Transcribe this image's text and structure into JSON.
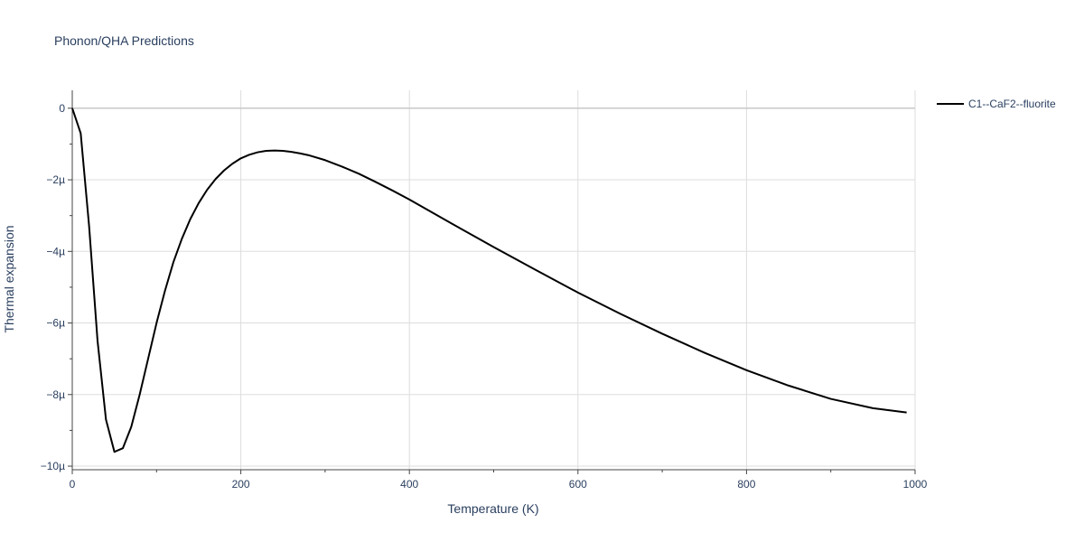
{
  "chart_data": {
    "type": "line",
    "title": "Phonon/QHA Predictions",
    "xlabel": "Temperature (K)",
    "ylabel": "Thermal expansion",
    "xlim": [
      0,
      1000
    ],
    "ylim": [
      -10.1,
      0.5
    ],
    "x_ticks": [
      {
        "value": 0,
        "label": "0"
      },
      {
        "value": 200,
        "label": "200"
      },
      {
        "value": 400,
        "label": "400"
      },
      {
        "value": 600,
        "label": "600"
      },
      {
        "value": 800,
        "label": "800"
      },
      {
        "value": 1000,
        "label": "1000"
      }
    ],
    "y_ticks": [
      {
        "value": 0,
        "label": "0"
      },
      {
        "value": -2,
        "label": "−2µ"
      },
      {
        "value": -4,
        "label": "−4µ"
      },
      {
        "value": -6,
        "label": "−6µ"
      },
      {
        "value": -8,
        "label": "−8µ"
      },
      {
        "value": -10,
        "label": "−10µ"
      }
    ],
    "y_unit_multiplier": 1e-06,
    "grid": true,
    "legend_position": "top-right",
    "series": [
      {
        "name": "C1--CaF2--fluorite",
        "color": "#000000",
        "x": [
          0,
          10,
          20,
          30,
          40,
          50,
          60,
          70,
          80,
          90,
          100,
          110,
          120,
          130,
          140,
          150,
          160,
          170,
          180,
          190,
          200,
          210,
          220,
          230,
          240,
          250,
          260,
          270,
          280,
          300,
          320,
          340,
          360,
          380,
          400,
          450,
          500,
          550,
          600,
          650,
          700,
          750,
          800,
          850,
          900,
          950,
          990
        ],
        "y": [
          0,
          -0.7,
          -3.3,
          -6.5,
          -8.7,
          -9.6,
          -9.5,
          -8.9,
          -8.0,
          -7.0,
          -6.0,
          -5.1,
          -4.3,
          -3.65,
          -3.1,
          -2.65,
          -2.28,
          -1.98,
          -1.74,
          -1.55,
          -1.4,
          -1.3,
          -1.23,
          -1.19,
          -1.18,
          -1.19,
          -1.22,
          -1.26,
          -1.31,
          -1.45,
          -1.63,
          -1.83,
          -2.06,
          -2.3,
          -2.55,
          -3.22,
          -3.88,
          -4.52,
          -5.15,
          -5.74,
          -6.3,
          -6.83,
          -7.32,
          -7.75,
          -8.12,
          -8.38,
          -8.5
        ]
      }
    ]
  }
}
